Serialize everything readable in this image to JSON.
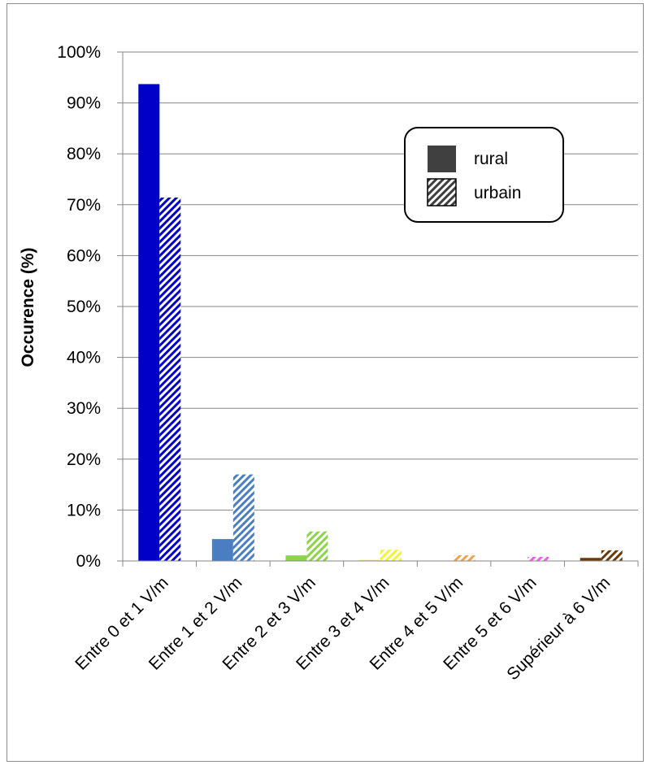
{
  "chart_data": {
    "type": "bar",
    "title": "",
    "xlabel": "",
    "ylabel": "Occurence (%)",
    "ylim": [
      0,
      100
    ],
    "yticks": [
      "0%",
      "10%",
      "20%",
      "30%",
      "40%",
      "50%",
      "60%",
      "70%",
      "80%",
      "90%",
      "100%"
    ],
    "grid": true,
    "legend_position": "top-right",
    "categories": [
      "Entre 0 et 1 V/m",
      "Entre 1 et 2 V/m",
      "Entre 2 et 3 V/m",
      "Entre 3 et 4 V/m",
      "Entre 4 et 5 V/m",
      "Entre 5 et 6 V/m",
      "Supérieur à 6 V/m"
    ],
    "category_colors": [
      "#0000c8",
      "#4a7ec0",
      "#8ed44a",
      "#f2f23a",
      "#f2a24a",
      "#ee5fe4",
      "#6b3a0a"
    ],
    "series": [
      {
        "name": "rural",
        "style": "solid",
        "values": [
          93.7,
          4.3,
          1.1,
          0.2,
          0.0,
          0.0,
          0.6
        ]
      },
      {
        "name": "urbain",
        "style": "hatched",
        "values": [
          71.4,
          17.0,
          5.8,
          2.2,
          1.1,
          0.8,
          2.1
        ]
      }
    ],
    "legend_swatch_color": "#404040"
  }
}
